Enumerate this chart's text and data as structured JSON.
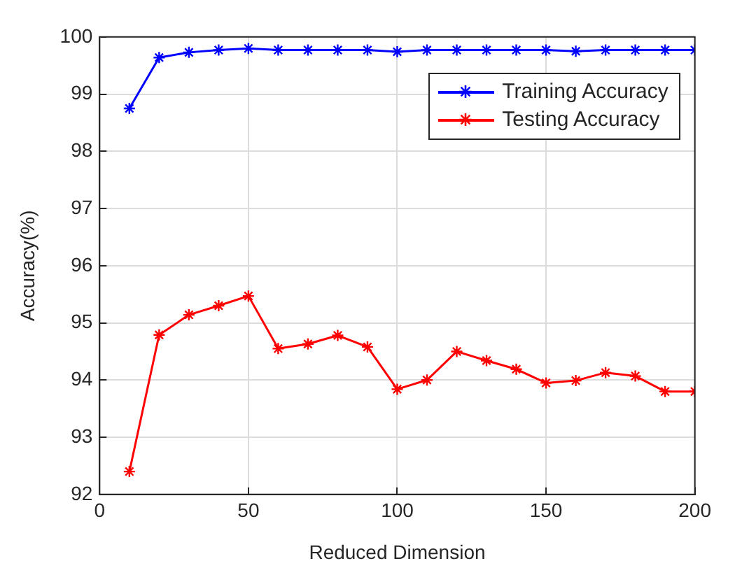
{
  "chart_data": {
    "type": "line",
    "xlabel": "Reduced Dimension",
    "ylabel": "Accuracy(%)",
    "x": [
      10,
      20,
      30,
      40,
      50,
      60,
      70,
      80,
      90,
      100,
      110,
      120,
      130,
      140,
      150,
      160,
      170,
      180,
      190,
      200
    ],
    "series": [
      {
        "name": "Training Accuracy",
        "color": "#0000ff",
        "values": [
          98.75,
          99.64,
          99.73,
          99.77,
          99.8,
          99.77,
          99.77,
          99.77,
          99.77,
          99.74,
          99.77,
          99.77,
          99.77,
          99.77,
          99.77,
          99.75,
          99.77,
          99.77,
          99.77,
          99.77
        ]
      },
      {
        "name": "Testing Accuracy",
        "color": "#ff0000",
        "values": [
          92.4,
          94.79,
          95.14,
          95.3,
          95.47,
          94.55,
          94.63,
          94.78,
          94.58,
          93.84,
          94.0,
          94.5,
          94.34,
          94.19,
          93.95,
          93.99,
          94.13,
          94.07,
          93.8,
          93.8
        ]
      }
    ],
    "xlim": [
      0,
      200
    ],
    "xticks": [
      0,
      50,
      100,
      150,
      200
    ],
    "ylim": [
      92,
      100
    ],
    "yticks": [
      92,
      93,
      94,
      95,
      96,
      97,
      98,
      99,
      100
    ],
    "grid": true,
    "legend": "top right",
    "marker": "cross",
    "line_style": "solid"
  }
}
